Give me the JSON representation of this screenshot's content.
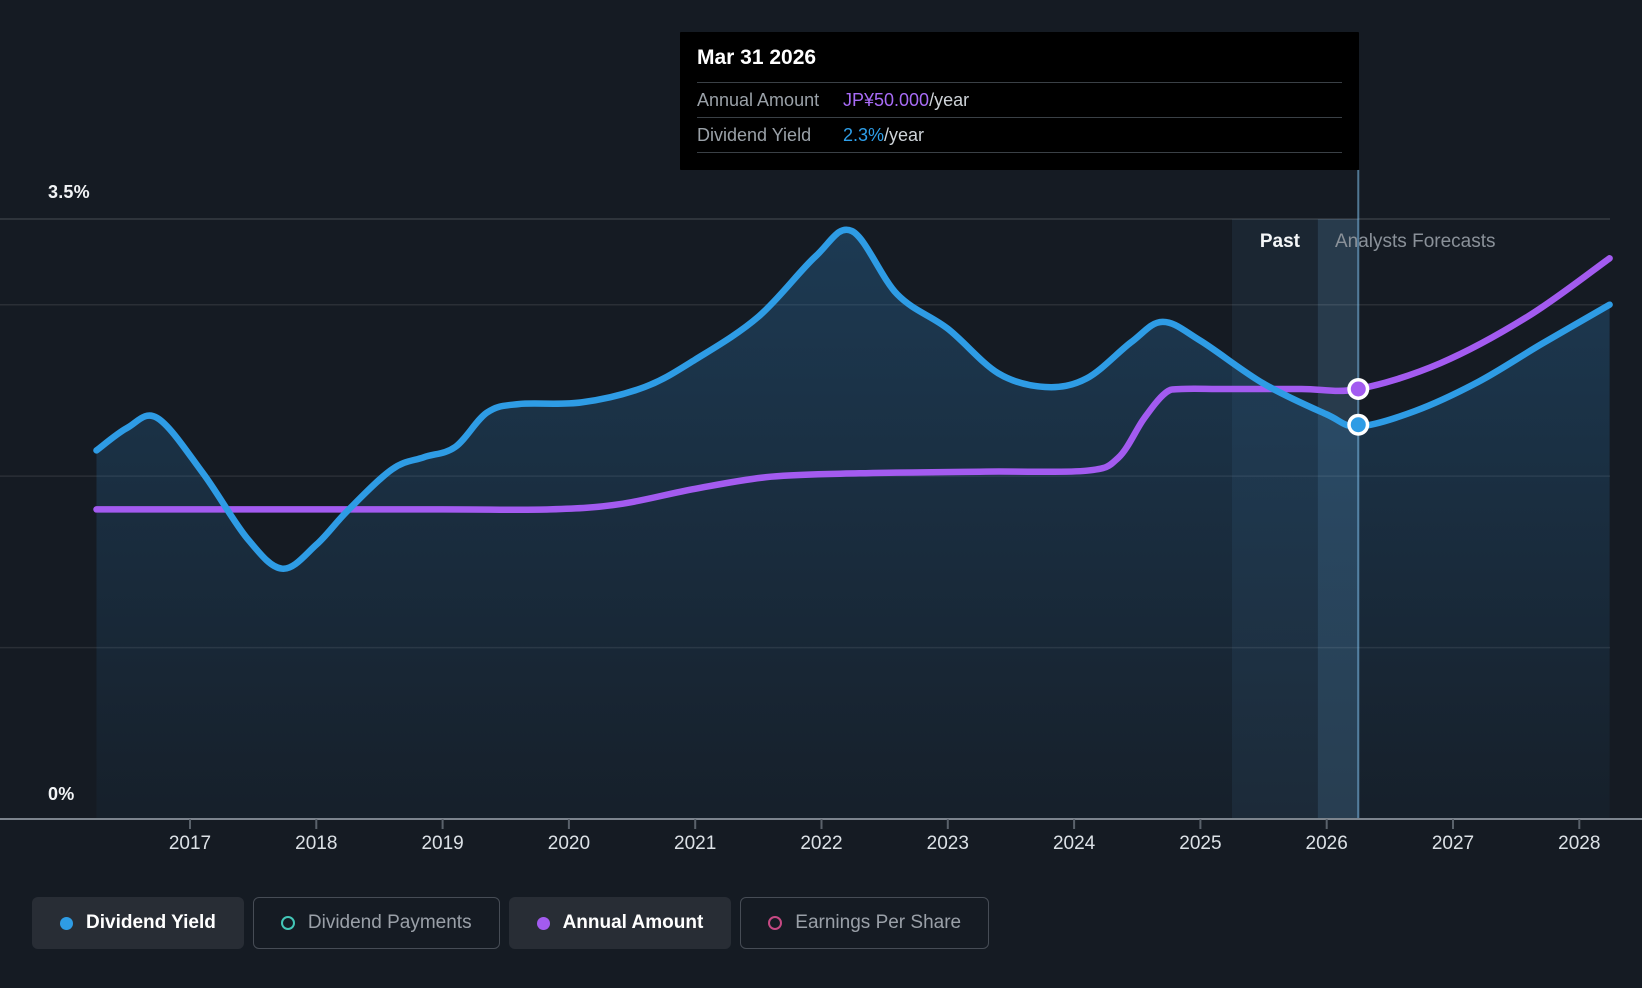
{
  "tooltip": {
    "date": "Mar 31 2026",
    "rows": [
      {
        "label": "Annual Amount",
        "value": "JP¥50.000",
        "suffix": "/year",
        "value_color": "#a76bf5"
      },
      {
        "label": "Dividend Yield",
        "value": "2.3%",
        "suffix": "/year",
        "value_color": "#2e9fe9"
      }
    ]
  },
  "axes": {
    "y_top_label": "3.5%",
    "y_bottom_label": "0%",
    "years": [
      "2017",
      "2018",
      "2019",
      "2020",
      "2021",
      "2022",
      "2023",
      "2024",
      "2025",
      "2026",
      "2027",
      "2028"
    ]
  },
  "annotations": {
    "past_label": "Past",
    "forecast_label": "Analysts Forecasts"
  },
  "legend": [
    {
      "label": "Dividend Yield",
      "color": "#2e9ce5",
      "variant": "filled",
      "active": true
    },
    {
      "label": "Dividend Payments",
      "color": "#43c6b7",
      "variant": "ring",
      "active": false
    },
    {
      "label": "Annual Amount",
      "color": "#a35bf0",
      "variant": "filled",
      "active": true
    },
    {
      "label": "Earnings Per Share",
      "color": "#c64983",
      "variant": "ring",
      "active": false
    }
  ],
  "chart_data": {
    "type": "line",
    "title": "Dividend history and forecast",
    "x_range": [
      2016.26,
      2028.24
    ],
    "x_ticks": [
      2017,
      2018,
      2019,
      2020,
      2021,
      2022,
      2023,
      2024,
      2025,
      2026,
      2027,
      2028
    ],
    "y_axis_percent": {
      "min": 0,
      "max": 3.5,
      "unit": "%",
      "gridlines": [
        3.5,
        3,
        2,
        1,
        0
      ]
    },
    "divider_year": 2025.93,
    "hover_year": 2026.25,
    "hover_band_years": [
      2025.25,
      2026.25
    ],
    "grid": true,
    "legend_position": "bottom",
    "series": [
      {
        "name": "Dividend Yield",
        "unit": "%",
        "color": "#2e9ce5",
        "style": "area",
        "points": [
          [
            2016.26,
            2.15
          ],
          [
            2016.5,
            2.28
          ],
          [
            2016.74,
            2.34
          ],
          [
            2017.1,
            2.02
          ],
          [
            2017.45,
            1.64
          ],
          [
            2017.73,
            1.46
          ],
          [
            2018.0,
            1.6
          ],
          [
            2018.25,
            1.8
          ],
          [
            2018.6,
            2.04
          ],
          [
            2018.85,
            2.11
          ],
          [
            2019.1,
            2.17
          ],
          [
            2019.35,
            2.37
          ],
          [
            2019.6,
            2.42
          ],
          [
            2020.1,
            2.43
          ],
          [
            2020.6,
            2.52
          ],
          [
            2021.0,
            2.68
          ],
          [
            2021.5,
            2.93
          ],
          [
            2021.95,
            3.28
          ],
          [
            2022.24,
            3.43
          ],
          [
            2022.6,
            3.06
          ],
          [
            2023.0,
            2.86
          ],
          [
            2023.4,
            2.6
          ],
          [
            2023.77,
            2.52
          ],
          [
            2024.1,
            2.57
          ],
          [
            2024.45,
            2.78
          ],
          [
            2024.7,
            2.9
          ],
          [
            2025.0,
            2.79
          ],
          [
            2025.5,
            2.54
          ],
          [
            2026.0,
            2.36
          ],
          [
            2026.25,
            2.29
          ],
          [
            2026.7,
            2.38
          ],
          [
            2027.2,
            2.55
          ],
          [
            2027.7,
            2.77
          ],
          [
            2028.24,
            3.0
          ]
        ]
      },
      {
        "name": "Annual Amount",
        "unit": "JP¥/year",
        "color": "#a35bf0",
        "style": "line",
        "points": [
          [
            2016.26,
            36
          ],
          [
            2017.5,
            36
          ],
          [
            2019.0,
            36
          ],
          [
            2019.85,
            36
          ],
          [
            2020.4,
            36.6
          ],
          [
            2021.0,
            38.4
          ],
          [
            2021.6,
            39.8
          ],
          [
            2022.3,
            40.2
          ],
          [
            2023.3,
            40.4
          ],
          [
            2024.1,
            40.5
          ],
          [
            2024.35,
            42
          ],
          [
            2024.55,
            46.5
          ],
          [
            2024.72,
            49.5
          ],
          [
            2024.85,
            50
          ],
          [
            2025.2,
            50
          ],
          [
            2025.8,
            50
          ],
          [
            2026.25,
            50
          ],
          [
            2026.9,
            53
          ],
          [
            2027.6,
            58.5
          ],
          [
            2028.24,
            65.2
          ]
        ]
      }
    ],
    "markers": [
      {
        "series": "Dividend Yield",
        "year": 2026.25,
        "value": 2.3,
        "color": "#2e9ce5"
      },
      {
        "series": "Annual Amount",
        "year": 2026.25,
        "value": 50,
        "color": "#a35bf0"
      }
    ]
  }
}
